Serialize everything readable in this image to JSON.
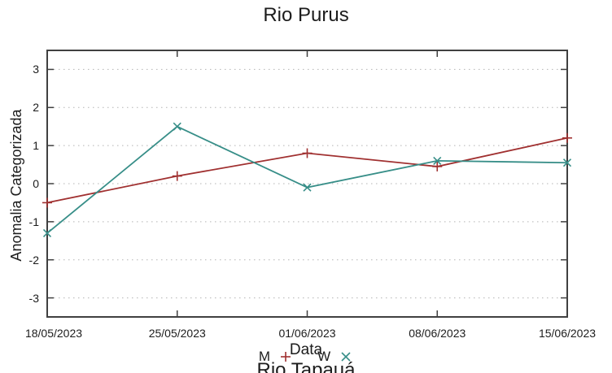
{
  "page": {
    "background": "#ffffff"
  },
  "chart_data": {
    "type": "line",
    "title": "Rio Purus",
    "xlabel": "Data",
    "ylabel": "Anomalia Categorizada",
    "categories": [
      "18/05/2023",
      "25/05/2023",
      "01/06/2023",
      "08/06/2023",
      "15/06/2023"
    ],
    "y_ticks": [
      3,
      2,
      1,
      0,
      -1,
      -2,
      -3
    ],
    "ylim": [
      -3.5,
      3.5
    ],
    "grid": "horizontal dashed gridlines at integer y values",
    "legend_position": "bottom center, clipped at lower image edge",
    "axis_color": "#404040",
    "grid_color": "#b3b3b3",
    "series": [
      {
        "name": "M",
        "marker": "plus",
        "color": "#a03030",
        "values": [
          -0.5,
          0.2,
          0.8,
          0.45,
          1.2
        ]
      },
      {
        "name": "W",
        "marker": "x",
        "color": "#378e88",
        "values": [
          -1.3,
          1.5,
          -0.1,
          0.6,
          0.55
        ]
      }
    ]
  },
  "next_chart": {
    "clipped_title": "Rio Tapauá"
  }
}
